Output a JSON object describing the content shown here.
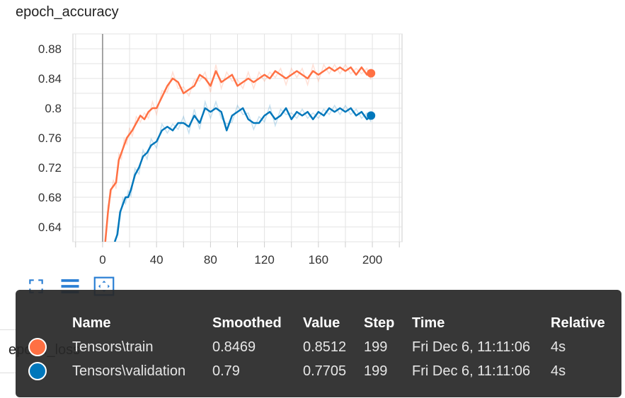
{
  "chart_title": "epoch_accuracy",
  "behind_title": "epoch_loss",
  "chart_data": {
    "type": "line",
    "title": "epoch_accuracy",
    "xlabel": "",
    "ylabel": "",
    "xlim": [
      -22,
      222
    ],
    "ylim": [
      0.62,
      0.9
    ],
    "xticks": [
      0,
      40,
      80,
      120,
      160,
      200
    ],
    "xtick_labels": [
      "0",
      "40",
      "80",
      "120",
      "160",
      "200"
    ],
    "yticks": [
      0.64,
      0.68,
      0.72,
      0.76,
      0.8,
      0.84,
      0.88
    ],
    "ytick_labels": [
      "0.64",
      "0.68",
      "0.72",
      "0.76",
      "0.8",
      "0.84",
      "0.88"
    ],
    "grid": true,
    "series": [
      {
        "name": "Tensors\\train",
        "color": "#ff7043",
        "x": [
          2,
          4,
          6,
          8,
          10,
          12,
          14,
          16,
          18,
          20,
          22,
          25,
          28,
          31,
          34,
          37,
          40,
          44,
          48,
          52,
          56,
          60,
          64,
          68,
          72,
          76,
          80,
          84,
          88,
          92,
          96,
          100,
          104,
          108,
          112,
          116,
          120,
          124,
          128,
          132,
          136,
          140,
          144,
          148,
          152,
          156,
          160,
          164,
          168,
          172,
          176,
          180,
          184,
          188,
          192,
          196,
          199
        ],
        "values": [
          0.62,
          0.66,
          0.69,
          0.695,
          0.7,
          0.73,
          0.74,
          0.75,
          0.76,
          0.765,
          0.77,
          0.78,
          0.79,
          0.785,
          0.795,
          0.8,
          0.8,
          0.815,
          0.83,
          0.84,
          0.835,
          0.82,
          0.825,
          0.83,
          0.845,
          0.84,
          0.83,
          0.85,
          0.835,
          0.84,
          0.845,
          0.83,
          0.835,
          0.84,
          0.835,
          0.84,
          0.845,
          0.84,
          0.85,
          0.845,
          0.84,
          0.845,
          0.85,
          0.845,
          0.84,
          0.85,
          0.845,
          0.85,
          0.855,
          0.85,
          0.855,
          0.85,
          0.855,
          0.845,
          0.855,
          0.845,
          0.847
        ]
      },
      {
        "name": "Tensors\\validation",
        "color": "#0077bb",
        "x": [
          9,
          11,
          13,
          15,
          17,
          19,
          21,
          24,
          27,
          30,
          33,
          36,
          40,
          44,
          48,
          52,
          56,
          60,
          64,
          68,
          72,
          76,
          80,
          84,
          88,
          92,
          96,
          100,
          104,
          108,
          112,
          116,
          120,
          124,
          128,
          132,
          136,
          140,
          144,
          148,
          152,
          156,
          160,
          164,
          168,
          172,
          176,
          180,
          184,
          188,
          192,
          196,
          199
        ],
        "values": [
          0.62,
          0.63,
          0.66,
          0.67,
          0.68,
          0.68,
          0.69,
          0.71,
          0.72,
          0.735,
          0.74,
          0.75,
          0.755,
          0.77,
          0.775,
          0.77,
          0.78,
          0.78,
          0.775,
          0.79,
          0.78,
          0.8,
          0.795,
          0.8,
          0.795,
          0.77,
          0.79,
          0.795,
          0.8,
          0.785,
          0.78,
          0.78,
          0.79,
          0.795,
          0.785,
          0.79,
          0.8,
          0.785,
          0.795,
          0.79,
          0.795,
          0.785,
          0.795,
          0.79,
          0.8,
          0.795,
          0.8,
          0.795,
          0.8,
          0.79,
          0.795,
          0.785,
          0.79
        ]
      }
    ]
  },
  "toolbar": [
    {
      "icon": "fullscreen-icon"
    },
    {
      "icon": "menu-icon"
    },
    {
      "icon": "fit-domain-icon"
    }
  ],
  "tooltip": {
    "headers": {
      "name": "Name",
      "smoothed": "Smoothed",
      "value": "Value",
      "step": "Step",
      "time": "Time",
      "relative": "Relative"
    },
    "rows": [
      {
        "color": "#ff7043",
        "name": "Tensors\\train",
        "smoothed": "0.8469",
        "value": "0.8512",
        "step": "199",
        "time": "Fri Dec 6, 11:11:06",
        "relative": "4s"
      },
      {
        "color": "#0077bb",
        "name": "Tensors\\validation",
        "smoothed": "0.79",
        "value": "0.7705",
        "step": "199",
        "time": "Fri Dec 6, 11:11:06",
        "relative": "4s"
      }
    ]
  }
}
